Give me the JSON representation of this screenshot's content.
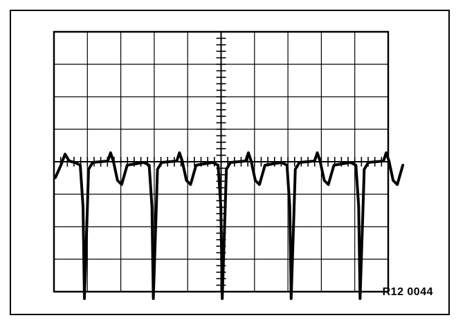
{
  "figure": {
    "reference_code": "R12 0044",
    "colors": {
      "line": "#000000",
      "background": "#ffffff"
    },
    "grid": {
      "columns": 10,
      "rows": 8,
      "minor_ticks_per_division": 5
    },
    "trace": {
      "description_type": "oscilloscope-waveform",
      "cycles": 10,
      "every_other_cycle_has_deep_drop": true
    }
  }
}
